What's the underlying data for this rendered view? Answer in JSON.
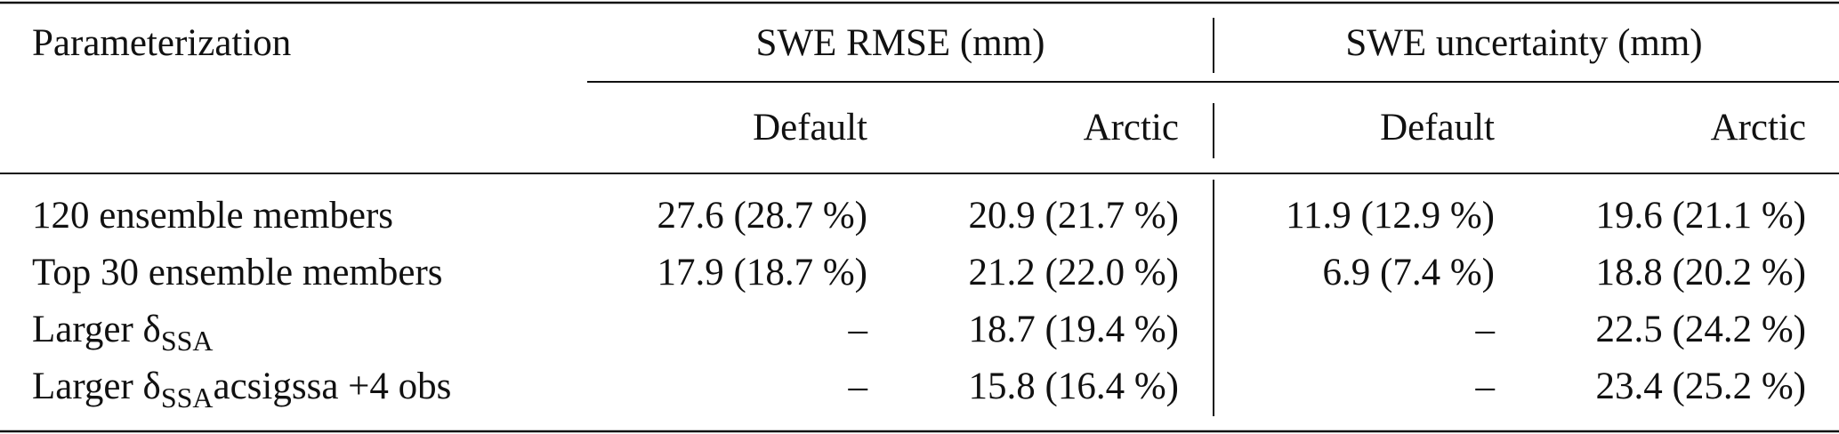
{
  "header": {
    "first": "Parameterization",
    "groups": [
      "SWE RMSE (mm)",
      "SWE uncertainty (mm)"
    ],
    "subheaders": [
      "Default",
      "Arctic",
      "Default",
      "Arctic"
    ]
  },
  "rows": [
    {
      "label": [
        "120 ensemble members"
      ],
      "cells": [
        "27.6 (28.7 %)",
        "20.9 (21.7 %)",
        "11.9 (12.9 %)",
        "19.6 (21.1 %)"
      ]
    },
    {
      "label": [
        "Top 30 ensemble members"
      ],
      "cells": [
        "17.9 (18.7 %)",
        "21.2 (22.0 %)",
        "6.9 (7.4 %)",
        "18.8 (20.2 %)"
      ]
    },
    {
      "label": [
        "Larger δ",
        "SSA"
      ],
      "cells": [
        "–",
        "18.7 (19.4 %)",
        "–",
        "22.5 (24.2 %)"
      ]
    },
    {
      "label": [
        "Larger δ",
        "SSA",
        "acsigssa +4 obs"
      ],
      "cells": [
        "–",
        "15.8 (16.4 %)",
        "–",
        "23.4 (25.2 %)"
      ]
    }
  ]
}
